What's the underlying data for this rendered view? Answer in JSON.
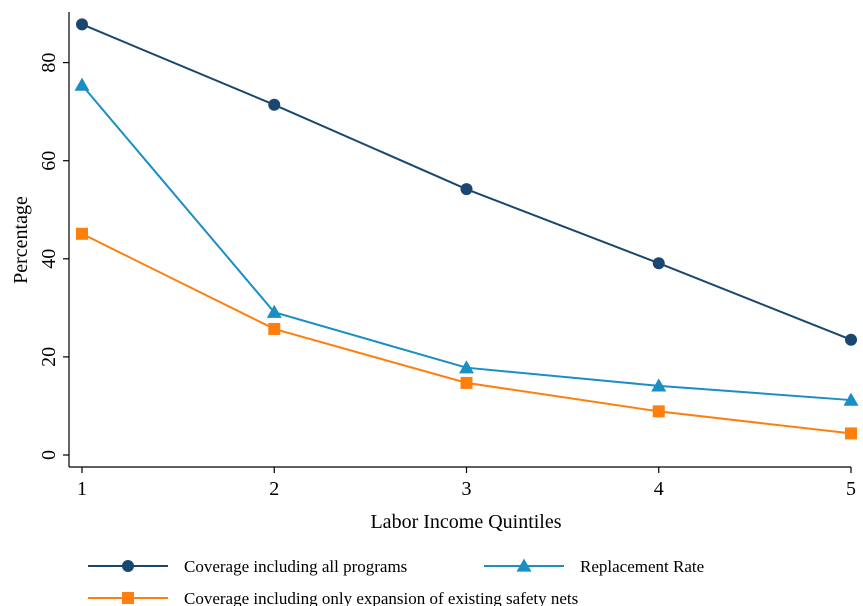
{
  "chart_data": {
    "type": "line",
    "title": "",
    "xlabel": "Labor Income Quintiles",
    "ylabel": "Percentage",
    "x": [
      1,
      2,
      3,
      4,
      5
    ],
    "xlim": [
      1,
      5
    ],
    "ylim": [
      0,
      90
    ],
    "x_ticks": [
      1,
      2,
      3,
      4,
      5
    ],
    "y_ticks": [
      0,
      20,
      40,
      60,
      80
    ],
    "grid": false,
    "legend_position": "bottom",
    "series": [
      {
        "name": "Coverage including all programs",
        "values": [
          87.8,
          71.4,
          54.2,
          39.1,
          23.5
        ],
        "color": "#1a476f",
        "marker": "circle"
      },
      {
        "name": "Replacement Rate",
        "values": [
          75.4,
          29.1,
          17.8,
          14.1,
          11.2
        ],
        "color": "#1a8fc4",
        "marker": "triangle"
      },
      {
        "name": "Coverage including only expansion of existing safety nets",
        "values": [
          45.1,
          25.7,
          14.7,
          8.9,
          4.4
        ],
        "color": "#ff7f0e",
        "marker": "square"
      }
    ]
  }
}
